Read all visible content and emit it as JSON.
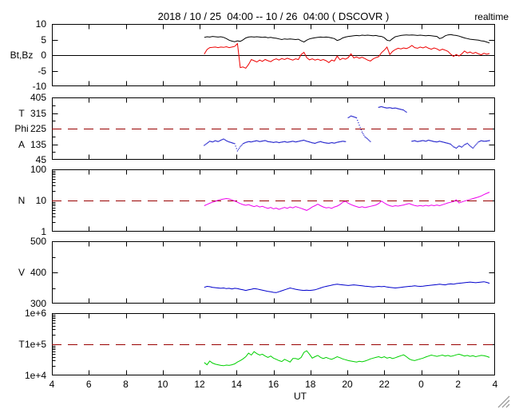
{
  "header": {
    "title": "2018 / 10 / 25  04:00 -- 10 / 26  04:00 ( DSCOVR )",
    "mode_label": "realtime"
  },
  "colors": {
    "bt": "#000000",
    "bz": "#ee0000",
    "phi": "#2222cc",
    "n": "#ee00ee",
    "v": "#0000cc",
    "temp": "#00d000",
    "ref_dash": "#990000",
    "frame": "#000000",
    "grip": "#999999"
  },
  "x_axis": {
    "label": "UT",
    "min": 4,
    "max": 28,
    "tick_hours": [
      4,
      6,
      8,
      10,
      12,
      14,
      16,
      18,
      20,
      22,
      24,
      26,
      28
    ],
    "tick_labels": [
      "4",
      "6",
      "8",
      "10",
      "12",
      "14",
      "16",
      "18",
      "20",
      "22",
      "0",
      "2",
      "4"
    ]
  },
  "chart_data": {
    "type": "line",
    "x_unit": "hour UT",
    "t0": 12.25,
    "dt": 0.15,
    "panels": [
      {
        "name": "magnetic-field",
        "scale": "linear",
        "ymin": -10,
        "ymax": 10,
        "yticks": [
          {
            "v": 10,
            "label": "10"
          },
          {
            "v": 5,
            "label": "5"
          },
          {
            "v": 0,
            "label": "0"
          },
          {
            "v": -5,
            "label": "-5"
          },
          {
            "v": -10,
            "label": "-10"
          }
        ],
        "yminors": [],
        "zero_line": true,
        "quantity_labels": [
          {
            "text": "Bt,Bz",
            "at": 0
          }
        ],
        "series": [
          {
            "name": "Bt",
            "color_key": "bt",
            "style": "line",
            "values": [
              5.7,
              5.9,
              5.8,
              6.0,
              5.9,
              5.8,
              5.9,
              5.7,
              5.3,
              4.8,
              4.5,
              4.3,
              4.6,
              4.4,
              4.9,
              5.5,
              5.8,
              5.9,
              5.8,
              5.9,
              5.8,
              5.7,
              5.8,
              5.6,
              5.7,
              5.5,
              5.4,
              5.2,
              5.0,
              5.2,
              5.1,
              5.2,
              5.1,
              5.0,
              5.1,
              4.6,
              4.2,
              4.8,
              5.2,
              5.4,
              5.6,
              5.7,
              5.8,
              5.7,
              5.8,
              5.7,
              5.5,
              5.3,
              4.7,
              5.0,
              5.5,
              5.8,
              6.0,
              6.1,
              6.2,
              6.3,
              6.2,
              6.4,
              6.3,
              6.4,
              6.3,
              6.2,
              6.3,
              6.1,
              6.0,
              5.6,
              4.8,
              4.6,
              5.3,
              5.9,
              6.1,
              6.3,
              6.4,
              6.5,
              6.4,
              6.5,
              6.4,
              6.3,
              6.4,
              6.3,
              6.2,
              6.3,
              6.2,
              6.1,
              6.0,
              5.3,
              5.6,
              6.2,
              6.5,
              6.6,
              6.4,
              6.3,
              6.1,
              5.8,
              5.5,
              5.3,
              5.1,
              5.0,
              4.9,
              4.8,
              4.6,
              4.5,
              4.2,
              3.9
            ]
          },
          {
            "name": "Bz",
            "color_key": "bz",
            "style": "line",
            "values": [
              0.3,
              1.8,
              2.4,
              2.5,
              2.6,
              2.4,
              2.6,
              2.5,
              2.7,
              2.4,
              2.6,
              2.8,
              3.7,
              -4.0,
              -3.8,
              -4.2,
              -3.0,
              -1.4,
              -1.8,
              -2.2,
              -1.6,
              -2.0,
              -1.4,
              -1.8,
              -2.1,
              -1.5,
              -1.2,
              -1.6,
              -1.1,
              -1.4,
              -1.0,
              -1.3,
              -1.6,
              -1.2,
              -1.4,
              0.2,
              0.9,
              -0.8,
              -1.5,
              -1.2,
              -1.6,
              -1.3,
              -1.7,
              -1.4,
              -1.8,
              -2.4,
              -1.6,
              -1.9,
              -0.3,
              -1.5,
              -1.0,
              -1.3,
              -0.8,
              0.4,
              -0.9,
              -0.6,
              -1.0,
              -0.7,
              -1.1,
              -1.6,
              -1.9,
              -1.2,
              -0.8,
              -0.5,
              0.8,
              1.6,
              2.6,
              0.2,
              1.2,
              1.8,
              2.2,
              2.0,
              2.3,
              2.1,
              2.5,
              3.1,
              2.4,
              2.2,
              2.6,
              2.3,
              2.7,
              2.2,
              1.9,
              2.3,
              2.0,
              1.5,
              1.9,
              1.6,
              1.2,
              0.3,
              -0.4,
              0.2,
              -0.3,
              0.4,
              1.3,
              0.7,
              1.0,
              0.5,
              0.9,
              0.4,
              0.1,
              0.6,
              0.3,
              0.5
            ]
          }
        ]
      },
      {
        "name": "phi-angle",
        "scale": "linear",
        "ymin": 45,
        "ymax": 405,
        "yticks": [
          {
            "v": 405,
            "label": "405"
          },
          {
            "v": 315,
            "label": "315"
          },
          {
            "v": 225,
            "label": "225"
          },
          {
            "v": 135,
            "label": "135"
          },
          {
            "v": 45,
            "label": "45"
          }
        ],
        "yminors": [
          90,
          180,
          270,
          360
        ],
        "ref_line": 225,
        "quantity_labels": [
          {
            "text": "T",
            "at": 315
          },
          {
            "text": "Phi",
            "at": 225
          },
          {
            "text": "A",
            "at": 135
          }
        ],
        "series": [
          {
            "name": "Phi",
            "color_key": "phi",
            "style": "dots",
            "values": [
              128,
              140,
              152,
              148,
              155,
              150,
              158,
              165,
              155,
              148,
              143,
              138,
              96,
              120,
              138,
              145,
              150,
              148,
              152,
              155,
              150,
              153,
              156,
              150,
              148,
              145,
              148,
              144,
              147,
              150,
              146,
              149,
              152,
              148,
              151,
              155,
              158,
              152,
              148,
              143,
              140,
              146,
              150,
              145,
              142,
              140,
              144,
              141,
              146,
              149,
              152,
              150,
              288,
              298,
              293,
              287,
              245,
              205,
              178,
              165,
              150,
              null,
              null,
              348,
              352,
              347,
              344,
              346,
              342,
              344,
              340,
              336,
              332,
              320,
              null,
              152,
              155,
              150,
              153,
              156,
              152,
              158,
              154,
              150,
              148,
              152,
              148,
              144,
              140,
              135,
              120,
              112,
              125,
              118,
              132,
              140,
              125,
              112,
              130,
              148,
              155,
              152,
              153,
              156
            ]
          }
        ]
      },
      {
        "name": "density",
        "scale": "log",
        "ymin": 1,
        "ymax": 100,
        "yticks": [
          {
            "v": 100,
            "label": "100"
          },
          {
            "v": 10,
            "label": "10"
          },
          {
            "v": 1,
            "label": "1"
          }
        ],
        "ref_line": 10,
        "quantity_labels": [
          {
            "text": "N",
            "at": 10
          }
        ],
        "series": [
          {
            "name": "N",
            "color_key": "n",
            "style": "line",
            "values": [
              6.8,
              7.5,
              8.2,
              8.8,
              9.4,
              10.2,
              10.8,
              11.2,
              11.6,
              11.2,
              10.4,
              9.6,
              8.8,
              8.0,
              7.4,
              7.0,
              7.4,
              6.8,
              6.4,
              6.8,
              6.2,
              6.5,
              6.0,
              5.6,
              6.0,
              5.4,
              5.7,
              5.2,
              5.6,
              6.0,
              5.6,
              6.2,
              5.8,
              6.4,
              6.0,
              5.6,
              5.2,
              4.8,
              5.4,
              6.2,
              6.8,
              7.6,
              6.8,
              6.2,
              5.8,
              6.0,
              5.6,
              6.2,
              6.6,
              7.4,
              8.8,
              9.4,
              8.2,
              7.4,
              6.8,
              6.4,
              6.0,
              6.3,
              5.9,
              6.2,
              6.5,
              6.8,
              7.2,
              8.0,
              9.6,
              8.4,
              7.4,
              6.8,
              6.5,
              6.8,
              6.6,
              6.9,
              7.2,
              7.6,
              8.0,
              7.4,
              6.9,
              6.6,
              6.9,
              6.6,
              7.0,
              6.7,
              7.1,
              6.8,
              7.2,
              6.8,
              7.3,
              7.8,
              8.4,
              8.8,
              9.2,
              10.5,
              8.4,
              9.0,
              9.6,
              10.2,
              10.8,
              11.5,
              12.2,
              13.0,
              14.0,
              15.5,
              17.0,
              18.5
            ]
          }
        ]
      },
      {
        "name": "speed",
        "scale": "linear",
        "ymin": 300,
        "ymax": 500,
        "yticks": [
          {
            "v": 500,
            "label": "500"
          },
          {
            "v": 400,
            "label": "400"
          },
          {
            "v": 300,
            "label": "300"
          }
        ],
        "yminors": [
          350,
          450
        ],
        "quantity_labels": [
          {
            "text": "V",
            "at": 400
          }
        ],
        "series": [
          {
            "name": "V",
            "color_key": "v",
            "style": "line",
            "values": [
              352,
              355,
              354,
              352,
              351,
              350,
              349,
              350,
              348,
              349,
              347,
              349,
              348,
              346,
              344,
              342,
              344,
              346,
              348,
              347,
              345,
              343,
              341,
              339,
              338,
              336,
              335,
              338,
              341,
              344,
              347,
              350,
              348,
              346,
              344,
              343,
              342,
              343,
              342,
              343,
              344,
              347,
              350,
              353,
              355,
              357,
              359,
              361,
              362,
              361,
              360,
              359,
              358,
              359,
              360,
              359,
              358,
              357,
              356,
              355,
              354,
              353,
              354,
              355,
              354,
              355,
              353,
              352,
              351,
              350,
              351,
              352,
              353,
              354,
              355,
              356,
              357,
              356,
              355,
              356,
              357,
              358,
              359,
              360,
              361,
              362,
              361,
              360,
              362,
              363,
              362,
              364,
              365,
              366,
              367,
              368,
              369,
              368,
              367,
              368,
              369,
              370,
              368,
              365
            ]
          }
        ]
      },
      {
        "name": "temperature",
        "scale": "log",
        "ymin": 10000,
        "ymax": 1000000,
        "yticks": [
          {
            "v": 1000000,
            "label": "1e+6"
          },
          {
            "v": 100000,
            "label": "1e+5"
          },
          {
            "v": 10000,
            "label": "1e+4"
          }
        ],
        "ref_line": 100000,
        "quantity_labels": [
          {
            "text": "T",
            "at": 100000
          }
        ],
        "series": [
          {
            "name": "T",
            "color_key": "temp",
            "style": "line",
            "values": [
              26000,
              22000,
              29000,
              25000,
              23000,
              22000,
              21000,
              20500,
              21500,
              21000,
              22000,
              23500,
              27000,
              30000,
              34000,
              40000,
              52000,
              45000,
              58000,
              50000,
              45000,
              48000,
              42000,
              38000,
              42000,
              36000,
              33000,
              30000,
              28000,
              33000,
              30000,
              27000,
              35000,
              35000,
              33000,
              38000,
              55000,
              62000,
              48000,
              36000,
              40000,
              44000,
              38000,
              35000,
              38000,
              35000,
              33000,
              36000,
              40000,
              37000,
              34000,
              32000,
              30000,
              29000,
              28000,
              27000,
              28500,
              27500,
              29000,
              31000,
              34000,
              36000,
              38000,
              40000,
              37000,
              40000,
              36000,
              38000,
              35000,
              37000,
              40000,
              43000,
              46000,
              40000,
              34000,
              31000,
              30000,
              32000,
              34000,
              36000,
              39000,
              42000,
              45000,
              43000,
              41000,
              43000,
              45000,
              42000,
              44000,
              41000,
              43000,
              46000,
              48000,
              45000,
              42000,
              44000,
              41000,
              43000,
              40000,
              42000,
              44000,
              43000,
              41000,
              38000
            ]
          }
        ]
      }
    ]
  }
}
